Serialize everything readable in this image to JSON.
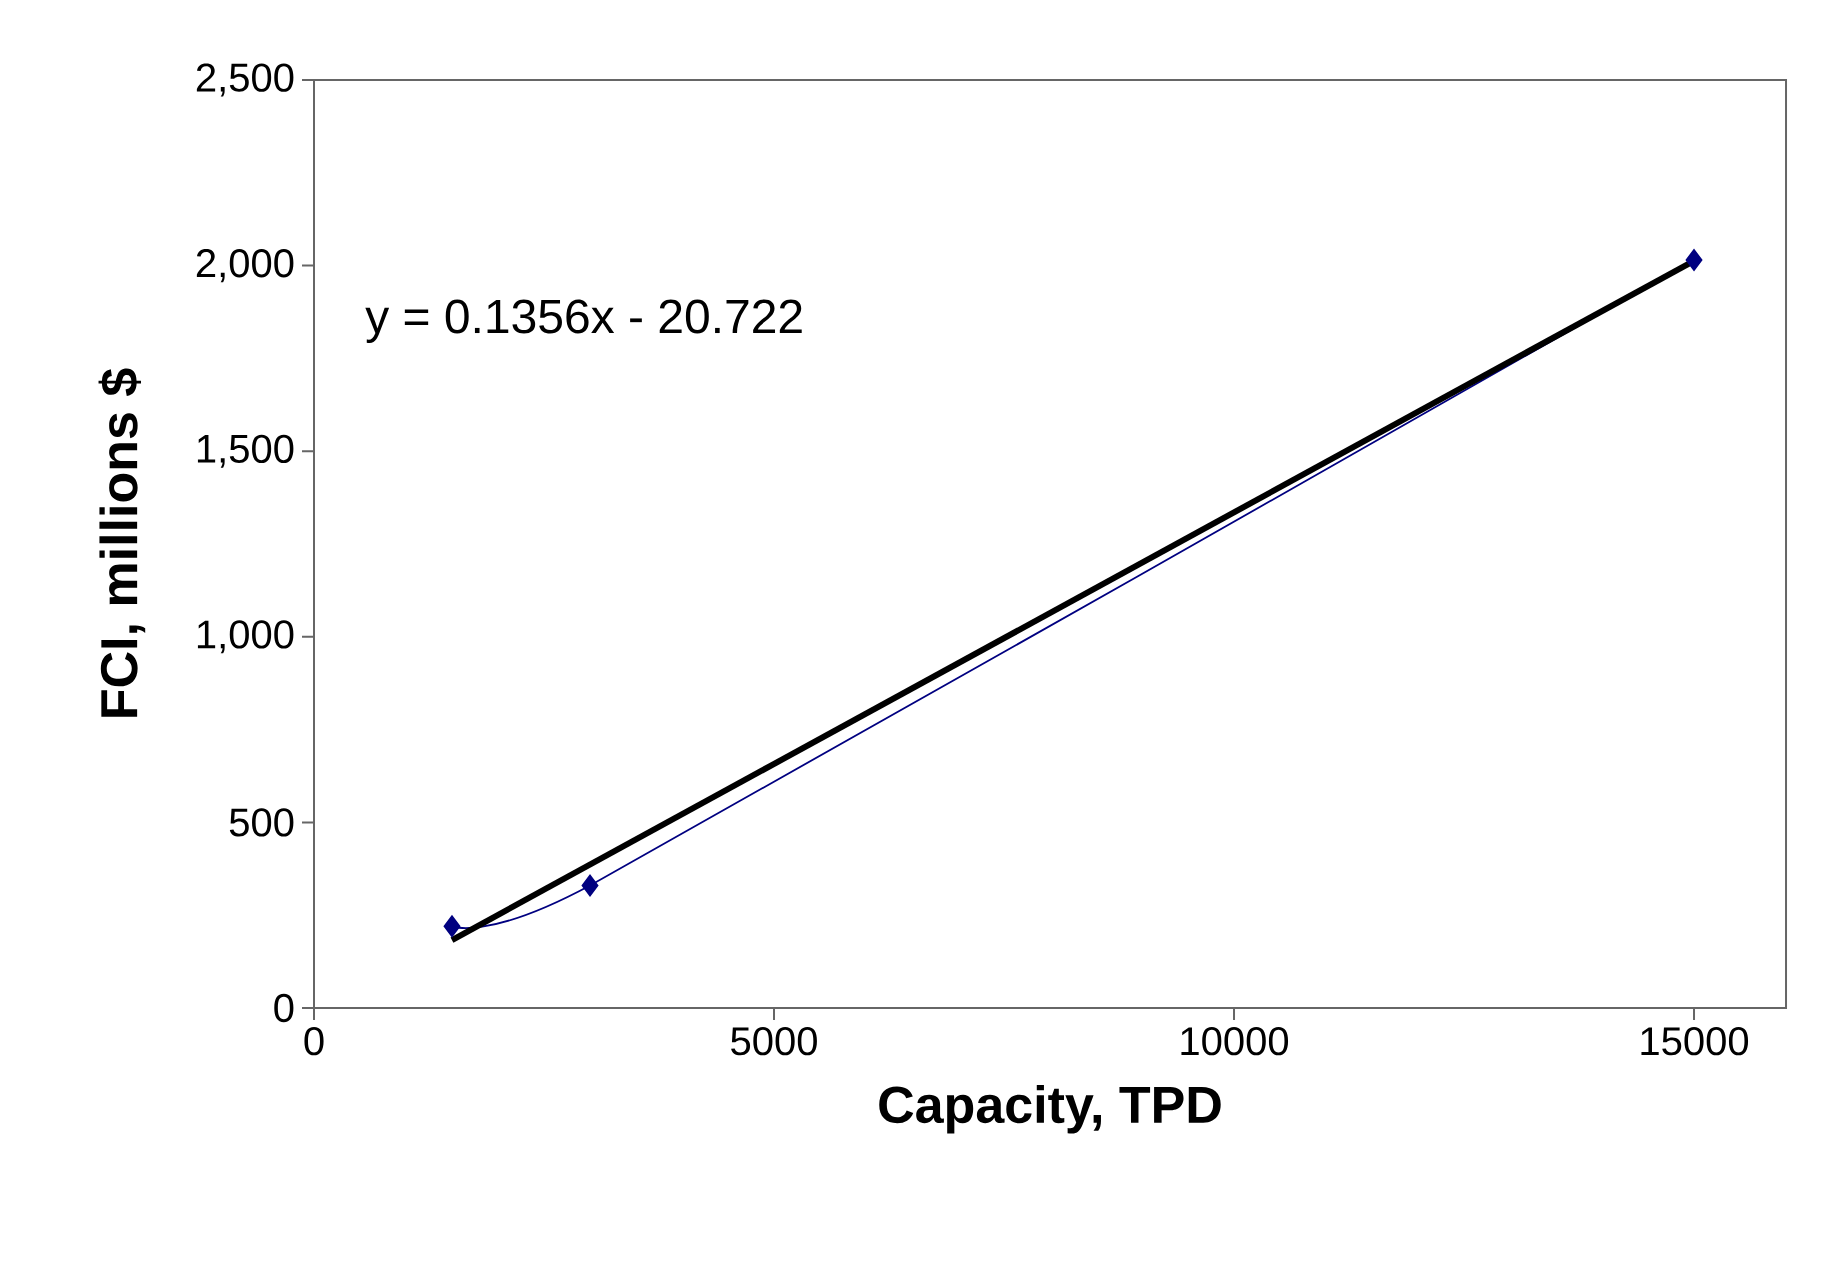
{
  "chart_data": {
    "type": "line",
    "xlabel": "Capacity, TPD",
    "ylabel": "FCI, millions $",
    "xlim": [
      0,
      16000
    ],
    "xticks": [
      0,
      5000,
      10000,
      15000
    ],
    "ylim": [
      0,
      2500
    ],
    "yticks": [
      0,
      {
        "value": 500,
        "label": "500"
      },
      {
        "value": 1000,
        "label": "1,000"
      },
      {
        "value": 1500,
        "label": "1,500"
      },
      {
        "value": 2000,
        "label": "2,000"
      },
      {
        "value": 2500,
        "label": "2,500"
      }
    ],
    "grid": false,
    "series": [
      {
        "color": "#000080",
        "marker": "diamond",
        "x": [
          1500,
          3000,
          15000
        ],
        "values": [
          220,
          330,
          2015
        ]
      },
      {
        "color": "#000000",
        "marker": "none",
        "x": [
          1500,
          15000
        ],
        "values": [
          183,
          2013
        ]
      }
    ],
    "annotations": [
      "y = 0.1356x - 20.722"
    ]
  }
}
